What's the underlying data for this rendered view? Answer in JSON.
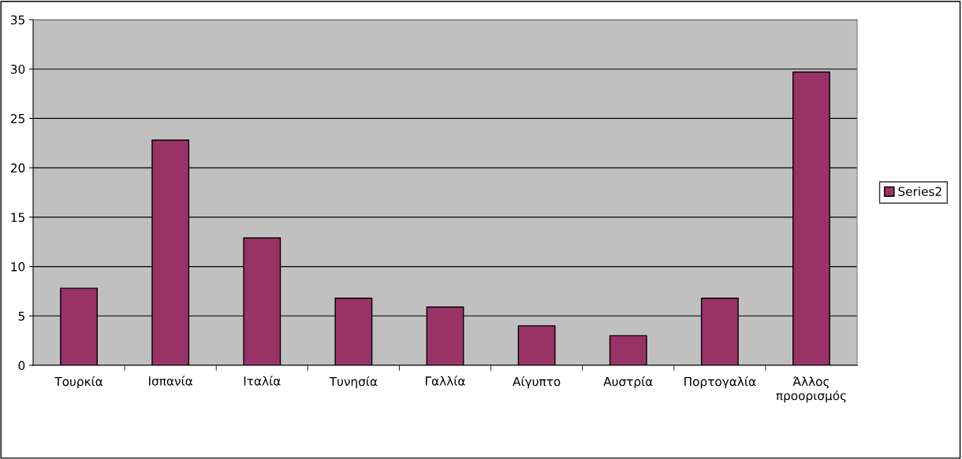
{
  "chart_data": {
    "type": "bar",
    "categories": [
      "Τουρκία",
      "Ισπανία",
      "Ιταλία",
      "Τυνησία",
      "Γαλλία",
      "Αίγυπτο",
      "Αυστρία",
      "Πορτογαλία",
      "Άλλος\nπροορισμός"
    ],
    "series": [
      {
        "name": "Series2",
        "color": "#993366",
        "values": [
          7.8,
          22.8,
          12.9,
          6.8,
          5.9,
          4,
          3,
          6.8,
          29.7
        ]
      }
    ],
    "ylim": [
      0,
      35
    ],
    "yticks": [
      0,
      5,
      10,
      15,
      20,
      25,
      30,
      35
    ],
    "grid": "y",
    "legend": "right"
  }
}
